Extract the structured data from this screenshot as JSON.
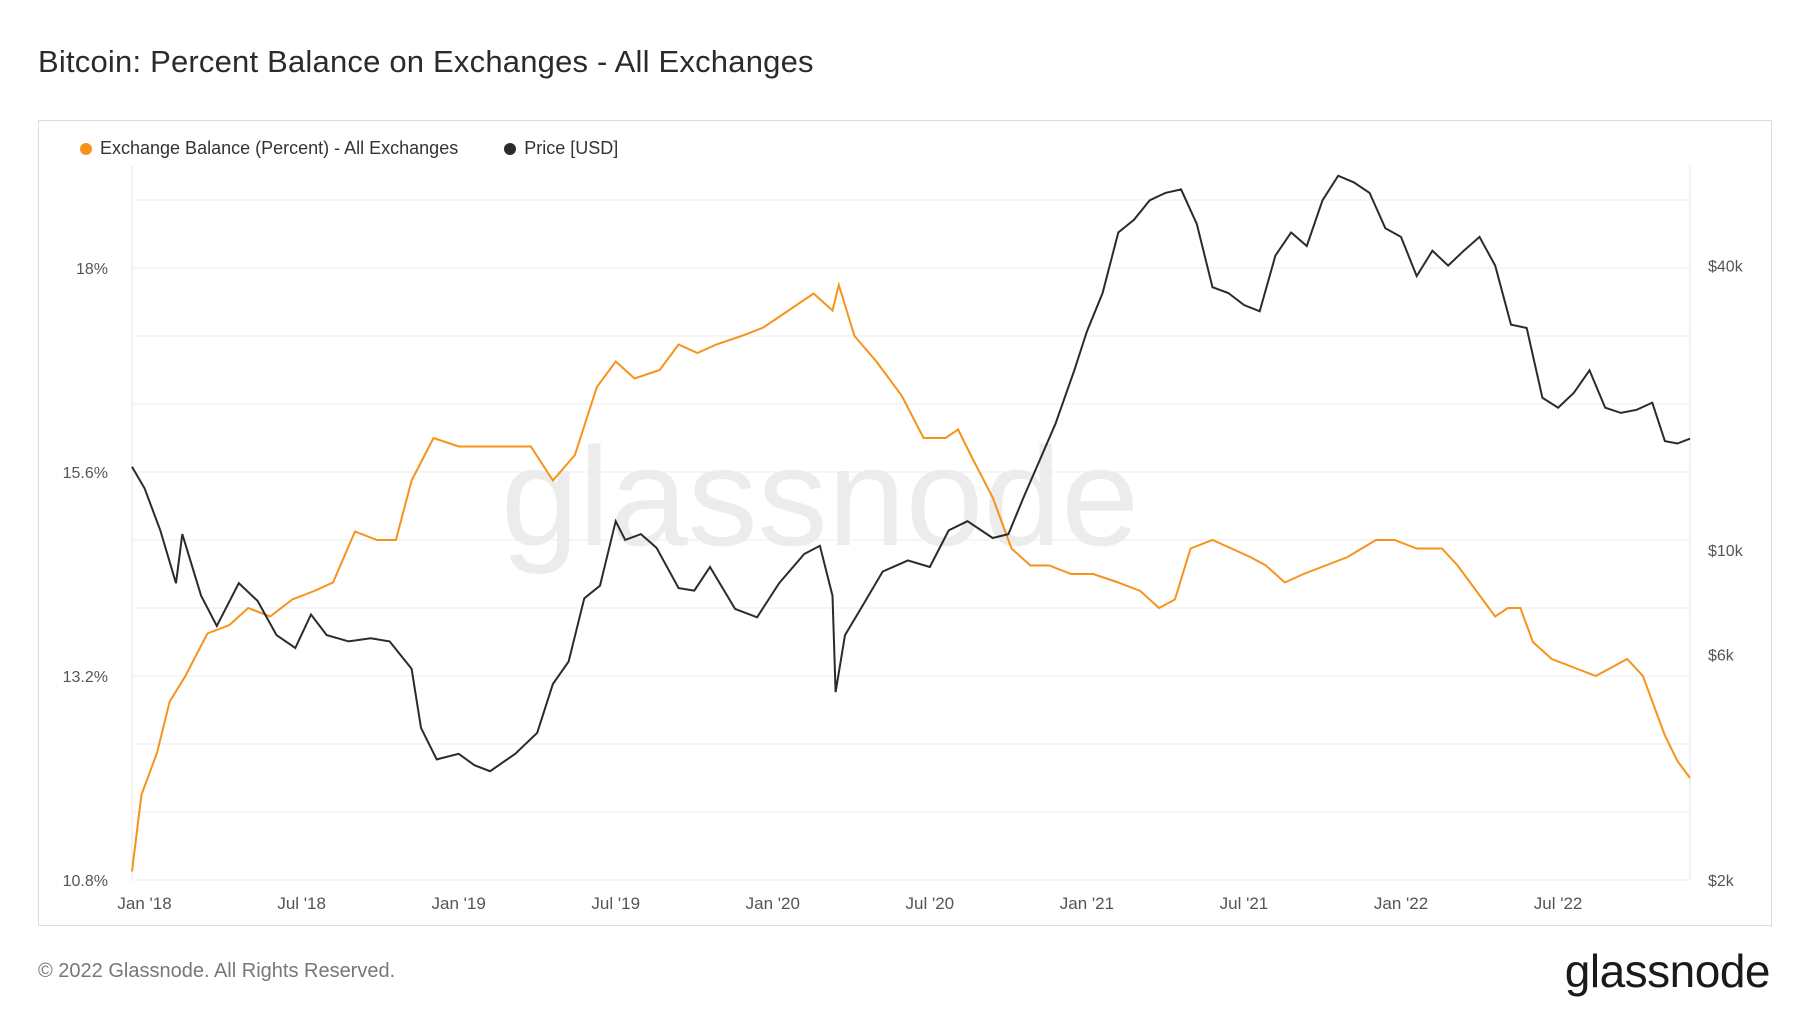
{
  "header": {
    "title": "Bitcoin: Percent Balance on Exchanges - All Exchanges"
  },
  "footer": {
    "copyright": "© 2022 Glassnode. All Rights Reserved.",
    "brand": "glassnode"
  },
  "watermark": "glassnode",
  "colors": {
    "exchange_balance": "#f7931a",
    "price": "#2b2b2b",
    "grid": "#ececec",
    "axis_text": "#555555"
  },
  "chart_data": {
    "type": "line",
    "x_ticks": [
      "Jan '18",
      "Jul '18",
      "Jan '19",
      "Jul '19",
      "Jan '20",
      "Jul '20",
      "Jan '21",
      "Jul '21",
      "Jan '22",
      "Jul '22"
    ],
    "x_tick_values": [
      2018.0,
      2018.5,
      2019.0,
      2019.5,
      2020.0,
      2020.5,
      2021.0,
      2021.5,
      2022.0,
      2022.5
    ],
    "xlim": [
      2017.96,
      2022.92
    ],
    "left_axis": {
      "ticks": [
        "10.8%",
        "13.2%",
        "15.6%",
        "18%"
      ],
      "tick_values": [
        10.8,
        13.2,
        15.6,
        18
      ],
      "ylim": [
        10.8,
        19.2
      ]
    },
    "right_axis": {
      "scale": "log",
      "ticks": [
        "$2k",
        "$6k",
        "$10k",
        "$40k"
      ],
      "tick_values": [
        2000,
        6000,
        10000,
        40000
      ],
      "ylim": [
        2000,
        65000
      ]
    },
    "grid": true,
    "legend_position": "top-left",
    "series": [
      {
        "name": "Exchange Balance (Percent) - All Exchanges",
        "axis": "left",
        "points": [
          [
            2017.96,
            10.9
          ],
          [
            2017.99,
            11.8
          ],
          [
            2018.04,
            12.3
          ],
          [
            2018.08,
            12.9
          ],
          [
            2018.13,
            13.2
          ],
          [
            2018.2,
            13.7
          ],
          [
            2018.27,
            13.8
          ],
          [
            2018.33,
            14.0
          ],
          [
            2018.4,
            13.9
          ],
          [
            2018.47,
            14.1
          ],
          [
            2018.54,
            14.2
          ],
          [
            2018.6,
            14.3
          ],
          [
            2018.67,
            14.9
          ],
          [
            2018.74,
            14.8
          ],
          [
            2018.8,
            14.8
          ],
          [
            2018.85,
            15.5
          ],
          [
            2018.92,
            16.0
          ],
          [
            2019.0,
            15.9
          ],
          [
            2019.08,
            15.9
          ],
          [
            2019.16,
            15.9
          ],
          [
            2019.23,
            15.9
          ],
          [
            2019.3,
            15.5
          ],
          [
            2019.37,
            15.8
          ],
          [
            2019.44,
            16.6
          ],
          [
            2019.5,
            16.9
          ],
          [
            2019.56,
            16.7
          ],
          [
            2019.64,
            16.8
          ],
          [
            2019.7,
            17.1
          ],
          [
            2019.76,
            17.0
          ],
          [
            2019.82,
            17.1
          ],
          [
            2019.9,
            17.2
          ],
          [
            2019.97,
            17.3
          ],
          [
            2020.05,
            17.5
          ],
          [
            2020.13,
            17.7
          ],
          [
            2020.19,
            17.5
          ],
          [
            2020.21,
            17.8
          ],
          [
            2020.26,
            17.2
          ],
          [
            2020.33,
            16.9
          ],
          [
            2020.41,
            16.5
          ],
          [
            2020.48,
            16.0
          ],
          [
            2020.55,
            16.0
          ],
          [
            2020.59,
            16.1
          ],
          [
            2020.63,
            15.8
          ],
          [
            2020.7,
            15.3
          ],
          [
            2020.76,
            14.7
          ],
          [
            2020.82,
            14.5
          ],
          [
            2020.88,
            14.5
          ],
          [
            2020.95,
            14.4
          ],
          [
            2021.02,
            14.4
          ],
          [
            2021.1,
            14.3
          ],
          [
            2021.17,
            14.2
          ],
          [
            2021.23,
            14.0
          ],
          [
            2021.28,
            14.1
          ],
          [
            2021.33,
            14.7
          ],
          [
            2021.4,
            14.8
          ],
          [
            2021.46,
            14.7
          ],
          [
            2021.52,
            14.6
          ],
          [
            2021.57,
            14.5
          ],
          [
            2021.63,
            14.3
          ],
          [
            2021.69,
            14.4
          ],
          [
            2021.76,
            14.5
          ],
          [
            2021.83,
            14.6
          ],
          [
            2021.92,
            14.8
          ],
          [
            2021.98,
            14.8
          ],
          [
            2022.05,
            14.7
          ],
          [
            2022.13,
            14.7
          ],
          [
            2022.18,
            14.5
          ],
          [
            2022.24,
            14.2
          ],
          [
            2022.3,
            13.9
          ],
          [
            2022.34,
            14.0
          ],
          [
            2022.38,
            14.0
          ],
          [
            2022.42,
            13.6
          ],
          [
            2022.48,
            13.4
          ],
          [
            2022.55,
            13.3
          ],
          [
            2022.62,
            13.2
          ],
          [
            2022.67,
            13.3
          ],
          [
            2022.72,
            13.4
          ],
          [
            2022.77,
            13.2
          ],
          [
            2022.8,
            12.9
          ],
          [
            2022.84,
            12.5
          ],
          [
            2022.88,
            12.2
          ],
          [
            2022.92,
            12.0
          ]
        ]
      },
      {
        "name": "Price [USD]",
        "axis": "right",
        "points": [
          [
            2017.96,
            15000
          ],
          [
            2018.0,
            13500
          ],
          [
            2018.05,
            11000
          ],
          [
            2018.1,
            8500
          ],
          [
            2018.12,
            10800
          ],
          [
            2018.18,
            8000
          ],
          [
            2018.23,
            6900
          ],
          [
            2018.3,
            8500
          ],
          [
            2018.36,
            7800
          ],
          [
            2018.42,
            6600
          ],
          [
            2018.48,
            6200
          ],
          [
            2018.53,
            7300
          ],
          [
            2018.58,
            6600
          ],
          [
            2018.65,
            6400
          ],
          [
            2018.72,
            6500
          ],
          [
            2018.78,
            6400
          ],
          [
            2018.85,
            5600
          ],
          [
            2018.88,
            4200
          ],
          [
            2018.93,
            3600
          ],
          [
            2019.0,
            3700
          ],
          [
            2019.05,
            3500
          ],
          [
            2019.1,
            3400
          ],
          [
            2019.18,
            3700
          ],
          [
            2019.25,
            4100
          ],
          [
            2019.3,
            5200
          ],
          [
            2019.35,
            5800
          ],
          [
            2019.4,
            7900
          ],
          [
            2019.45,
            8400
          ],
          [
            2019.5,
            11500
          ],
          [
            2019.53,
            10500
          ],
          [
            2019.58,
            10800
          ],
          [
            2019.63,
            10100
          ],
          [
            2019.7,
            8300
          ],
          [
            2019.75,
            8200
          ],
          [
            2019.8,
            9200
          ],
          [
            2019.88,
            7500
          ],
          [
            2019.95,
            7200
          ],
          [
            2020.02,
            8500
          ],
          [
            2020.1,
            9800
          ],
          [
            2020.15,
            10200
          ],
          [
            2020.19,
            8000
          ],
          [
            2020.2,
            5000
          ],
          [
            2020.23,
            6600
          ],
          [
            2020.28,
            7500
          ],
          [
            2020.35,
            9000
          ],
          [
            2020.43,
            9500
          ],
          [
            2020.5,
            9200
          ],
          [
            2020.56,
            11000
          ],
          [
            2020.62,
            11500
          ],
          [
            2020.7,
            10600
          ],
          [
            2020.75,
            10800
          ],
          [
            2020.8,
            13000
          ],
          [
            2020.85,
            15500
          ],
          [
            2020.9,
            18500
          ],
          [
            2020.96,
            24000
          ],
          [
            2021.0,
            29000
          ],
          [
            2021.05,
            35000
          ],
          [
            2021.1,
            47000
          ],
          [
            2021.15,
            50000
          ],
          [
            2021.2,
            55000
          ],
          [
            2021.25,
            57000
          ],
          [
            2021.3,
            58000
          ],
          [
            2021.35,
            49000
          ],
          [
            2021.4,
            36000
          ],
          [
            2021.45,
            35000
          ],
          [
            2021.5,
            33000
          ],
          [
            2021.55,
            32000
          ],
          [
            2021.6,
            42000
          ],
          [
            2021.65,
            47000
          ],
          [
            2021.7,
            44000
          ],
          [
            2021.75,
            55000
          ],
          [
            2021.8,
            62000
          ],
          [
            2021.85,
            60000
          ],
          [
            2021.9,
            57000
          ],
          [
            2021.95,
            48000
          ],
          [
            2022.0,
            46000
          ],
          [
            2022.05,
            38000
          ],
          [
            2022.1,
            43000
          ],
          [
            2022.15,
            40000
          ],
          [
            2022.2,
            43000
          ],
          [
            2022.25,
            46000
          ],
          [
            2022.3,
            40000
          ],
          [
            2022.35,
            30000
          ],
          [
            2022.4,
            29500
          ],
          [
            2022.45,
            21000
          ],
          [
            2022.5,
            20000
          ],
          [
            2022.55,
            21500
          ],
          [
            2022.6,
            24000
          ],
          [
            2022.65,
            20000
          ],
          [
            2022.7,
            19500
          ],
          [
            2022.75,
            19800
          ],
          [
            2022.8,
            20500
          ],
          [
            2022.84,
            17000
          ],
          [
            2022.88,
            16800
          ],
          [
            2022.92,
            17200
          ]
        ]
      }
    ]
  }
}
